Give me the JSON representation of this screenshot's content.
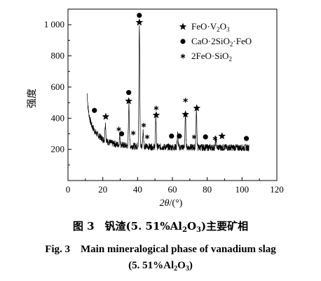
{
  "chart_data": {
    "type": "line",
    "xlabel_symbol": "2θ",
    "xlabel_unit": "/(°)",
    "ylabel": "强度",
    "xlim": [
      0,
      120
    ],
    "ylim": [
      0,
      1100
    ],
    "x_ticks": [
      0,
      20,
      40,
      60,
      80,
      100,
      120
    ],
    "y_ticks": [
      {
        "value": 200,
        "label": "200"
      },
      {
        "value": 400,
        "label": "400"
      },
      {
        "value": 600,
        "label": "600"
      },
      {
        "value": 800,
        "label": "800"
      },
      {
        "value": 1000,
        "label": "1 000"
      }
    ],
    "grid": false,
    "legend_position": "top-right",
    "legend": [
      {
        "symbol": "star",
        "main": "FeO·V",
        "sub": "2",
        "tail": "O",
        "tail_sub": "3"
      },
      {
        "symbol": "circle",
        "main": "CaO·2SiO",
        "sub": "2",
        "tail": "·FeO",
        "tail_sub": ""
      },
      {
        "symbol": "asterisk",
        "main": "2FeO·SiO",
        "sub": "2",
        "tail": "",
        "tail_sub": ""
      }
    ],
    "baseline": [
      [
        11,
        560
      ],
      [
        11.5,
        470
      ],
      [
        12,
        430
      ],
      [
        12.5,
        400
      ],
      [
        13,
        375
      ],
      [
        14,
        345
      ],
      [
        15,
        325
      ],
      [
        16,
        305
      ],
      [
        18,
        285
      ],
      [
        20,
        265
      ],
      [
        22,
        252
      ],
      [
        25,
        240
      ],
      [
        28,
        232
      ],
      [
        30,
        228
      ],
      [
        35,
        222
      ],
      [
        40,
        220
      ],
      [
        45,
        218
      ],
      [
        50,
        216
      ],
      [
        55,
        215
      ],
      [
        60,
        214
      ],
      [
        70,
        213
      ],
      [
        80,
        212
      ],
      [
        90,
        212
      ],
      [
        100,
        211
      ],
      [
        104,
        211
      ]
    ],
    "peaks": [
      {
        "x": 21.5,
        "y": 370
      },
      {
        "x": 29.8,
        "y": 290
      },
      {
        "x": 35.0,
        "y": 490
      },
      {
        "x": 41.0,
        "y": 1000
      },
      {
        "x": 43.2,
        "y": 320
      },
      {
        "x": 50.5,
        "y": 400
      },
      {
        "x": 63.0,
        "y": 300
      },
      {
        "x": 67.5,
        "y": 420
      },
      {
        "x": 73.8,
        "y": 450
      },
      {
        "x": 85.0,
        "y": 270
      }
    ],
    "markers": [
      {
        "type": "circle",
        "x": 15.2,
        "y": 450
      },
      {
        "type": "star",
        "x": 21.7,
        "y": 410
      },
      {
        "type": "asterisk",
        "x": 29.2,
        "y": 330
      },
      {
        "type": "circle",
        "x": 30.8,
        "y": 300
      },
      {
        "type": "circle",
        "x": 34.9,
        "y": 565
      },
      {
        "type": "star",
        "x": 34.9,
        "y": 510
      },
      {
        "type": "asterisk",
        "x": 37.5,
        "y": 305
      },
      {
        "type": "circle",
        "x": 41.0,
        "y": 1060
      },
      {
        "type": "star",
        "x": 41.0,
        "y": 1015
      },
      {
        "type": "asterisk",
        "x": 43.5,
        "y": 355
      },
      {
        "type": "asterisk",
        "x": 45.5,
        "y": 280
      },
      {
        "type": "asterisk",
        "x": 50.7,
        "y": 465
      },
      {
        "type": "star",
        "x": 50.7,
        "y": 420
      },
      {
        "type": "circle",
        "x": 59.5,
        "y": 285
      },
      {
        "type": "circle",
        "x": 64.0,
        "y": 285
      },
      {
        "type": "asterisk",
        "x": 67.5,
        "y": 515
      },
      {
        "type": "star",
        "x": 67.5,
        "y": 425
      },
      {
        "type": "asterisk",
        "x": 72.5,
        "y": 280
      },
      {
        "type": "star",
        "x": 74.0,
        "y": 465
      },
      {
        "type": "circle",
        "x": 79.0,
        "y": 280
      },
      {
        "type": "asterisk",
        "x": 84.5,
        "y": 270
      },
      {
        "type": "star",
        "x": 88.5,
        "y": 285
      },
      {
        "type": "circle",
        "x": 102.5,
        "y": 270
      }
    ]
  },
  "caption": {
    "cn_pre": "图 3　钒渣(5. 51%Al",
    "cn_sub1": "2",
    "cn_mid": "O",
    "cn_sub2": "3",
    "cn_post": ")主要矿相",
    "en_line1": "Fig. 3　Main mineralogical phase of vanadium slag",
    "en2_pre": "(5. 51%Al",
    "en2_sub1": "2",
    "en2_mid": "O",
    "en2_sub2": "3",
    "en2_post": ")"
  }
}
